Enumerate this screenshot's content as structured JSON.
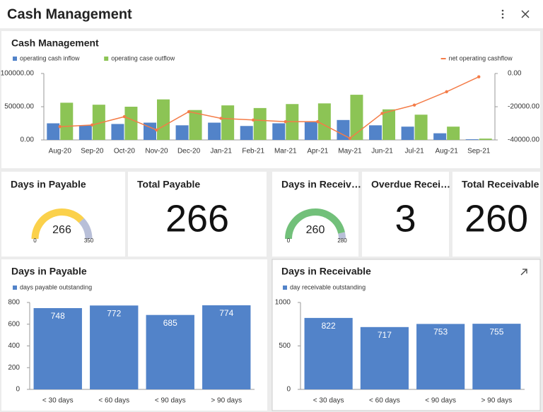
{
  "header": {
    "title": "Cash Management"
  },
  "chart_data": [
    {
      "type": "bar",
      "title": "Cash Management",
      "categories": [
        "Aug-20",
        "Sep-20",
        "Oct-20",
        "Nov-20",
        "Dec-20",
        "Jan-21",
        "Feb-21",
        "Mar-21",
        "Apr-21",
        "May-21",
        "Jun-21",
        "Jul-21",
        "Aug-21",
        "Sep-21"
      ],
      "series": [
        {
          "name": "operating cash inflow",
          "color": "#5283c9",
          "values": [
            25000,
            22000,
            24000,
            26000,
            22000,
            26000,
            21000,
            25000,
            27000,
            30000,
            22000,
            20000,
            10000,
            1000
          ]
        },
        {
          "name": "operating case outflow",
          "color": "#8cc455",
          "values": [
            56000,
            53000,
            50000,
            61000,
            45000,
            52000,
            48000,
            54000,
            55000,
            68000,
            46000,
            38000,
            20000,
            2000
          ]
        },
        {
          "name": "net operating cashflow",
          "type": "line",
          "axis": "y2",
          "color": "#f47c48",
          "values": [
            -32000,
            -31000,
            -26000,
            -34000,
            -23000,
            -27000,
            -28000,
            -29000,
            -29000,
            -39000,
            -24000,
            -19000,
            -11000,
            -2000
          ]
        }
      ],
      "ylim": [
        0,
        100000
      ],
      "yticks": [
        {
          "value": 0,
          "label": "0.00"
        },
        {
          "value": 50000,
          "label": "50000.00"
        },
        {
          "value": 100000,
          "label": "100000.00"
        }
      ],
      "y2lim": [
        -40000,
        0
      ],
      "y2ticks": [
        {
          "value": 0,
          "label": "0.00"
        },
        {
          "value": -20000,
          "label": "-20000.00"
        },
        {
          "value": -40000,
          "label": "-40000.00"
        }
      ],
      "legend": "top"
    },
    {
      "type": "bar",
      "title": "Days in Payable",
      "categories": [
        "< 30 days",
        "< 60 days",
        "< 90 days",
        "> 90 days"
      ],
      "series": [
        {
          "name": "days payable outstanding",
          "color": "#5283c9",
          "values": [
            748,
            772,
            685,
            774
          ]
        }
      ],
      "ylim": [
        0,
        800
      ],
      "yticks": [
        0,
        200,
        400,
        600,
        800
      ],
      "data_labels": true,
      "legend": "top"
    },
    {
      "type": "bar",
      "title": "Days in Receivable",
      "categories": [
        "< 30 days",
        "< 60 days",
        "< 90 days",
        "> 90 days"
      ],
      "series": [
        {
          "name": "day receivable outstanding",
          "color": "#5283c9",
          "values": [
            822,
            717,
            753,
            755
          ]
        }
      ],
      "ylim": [
        0,
        1000
      ],
      "yticks": [
        0,
        500,
        1000
      ],
      "data_labels": true,
      "legend": "top"
    }
  ],
  "kpis": [
    {
      "type": "gauge",
      "title": "Days in Payable",
      "value": 266,
      "min": 0,
      "max": 350,
      "color": "#fbd14b"
    },
    {
      "type": "number",
      "title": "Total Payable",
      "value": 266
    },
    {
      "type": "gauge",
      "title": "Days in Receiv…",
      "value": 260,
      "min": 0,
      "max": 280,
      "color": "#72c07a"
    },
    {
      "type": "number",
      "title": "Overdue Recei…",
      "value": 3
    },
    {
      "type": "number",
      "title": "Total Receivable",
      "value": 260
    }
  ]
}
